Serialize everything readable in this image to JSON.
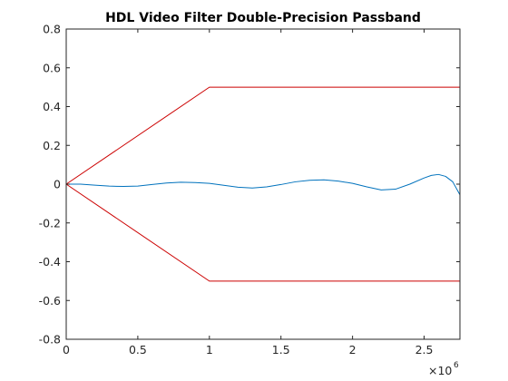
{
  "chart_data": {
    "type": "line",
    "title": "HDL Video Filter Double-Precision Passband",
    "xlabel": "",
    "ylabel": "",
    "x_multiplier_base": "×10",
    "x_multiplier_exponent": "6",
    "xlim": [
      0,
      2.75
    ],
    "ylim": [
      -0.8,
      0.8
    ],
    "x_ticks": [
      0,
      0.5,
      1,
      1.5,
      2,
      2.5
    ],
    "x_tick_labels": [
      "0",
      "0.5",
      "1",
      "1.5",
      "2",
      "2.5"
    ],
    "y_ticks": [
      -0.8,
      -0.6,
      -0.4,
      -0.2,
      0,
      0.2,
      0.4,
      0.6,
      0.8
    ],
    "y_tick_labels": [
      "-0.8",
      "-0.6",
      "-0.4",
      "-0.2",
      "0",
      "0.2",
      "0.4",
      "0.6",
      "0.8"
    ],
    "grid": false,
    "legend": "none",
    "series": [
      {
        "color": "#0072bd",
        "x": [
          0,
          0.1,
          0.2,
          0.3,
          0.4,
          0.5,
          0.6,
          0.7,
          0.8,
          0.9,
          1.0,
          1.1,
          1.2,
          1.3,
          1.4,
          1.5,
          1.6,
          1.7,
          1.8,
          1.9,
          2.0,
          2.1,
          2.2,
          2.3,
          2.4,
          2.5,
          2.55,
          2.6,
          2.65,
          2.7,
          2.75
        ],
        "y": [
          0,
          0.0,
          -0.005,
          -0.01,
          -0.012,
          -0.01,
          -0.002,
          0.006,
          0.01,
          0.008,
          0.004,
          -0.006,
          -0.016,
          -0.02,
          -0.014,
          -0.002,
          0.012,
          0.02,
          0.022,
          0.016,
          0.004,
          -0.014,
          -0.03,
          -0.026,
          0.0,
          0.032,
          0.045,
          0.05,
          0.04,
          0.012,
          -0.055
        ]
      },
      {
        "color": "#cc0000",
        "x": [
          0,
          1.0,
          2.75
        ],
        "y": [
          0,
          0.5,
          0.5
        ]
      },
      {
        "color": "#cc0000",
        "x": [
          0,
          1.0,
          2.75
        ],
        "y": [
          0,
          -0.5,
          -0.5
        ]
      }
    ]
  }
}
